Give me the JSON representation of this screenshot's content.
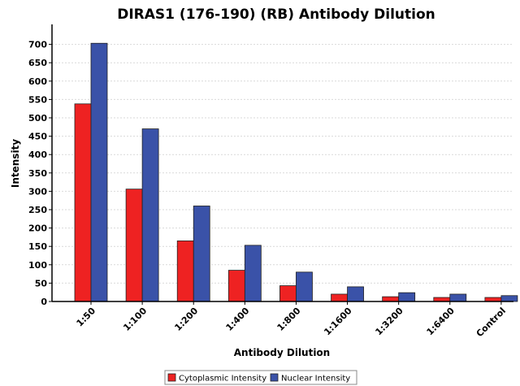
{
  "colors": {
    "cytoplasmic": "#ee2222",
    "nuclear": "#3a52a8",
    "background": "#ffffff"
  },
  "chart_data": {
    "type": "bar",
    "title": "DIRAS1 (176-190) (RB) Antibody Dilution",
    "xlabel": "Antibody Dilution",
    "ylabel": "Intensity",
    "ylim": [
      0,
      750
    ],
    "yticks": [
      0,
      50,
      100,
      150,
      200,
      250,
      300,
      350,
      400,
      450,
      500,
      550,
      600,
      650,
      700
    ],
    "grid": true,
    "legend_position": "bottom",
    "categories": [
      "1:50",
      "1:100",
      "1:200",
      "1:400",
      "1:800",
      "1:1600",
      "1:3200",
      "1:6400",
      "Control"
    ],
    "series": [
      {
        "name": "Cytoplasmic Intensity",
        "color_key": "cytoplasmic",
        "values": [
          538,
          306,
          165,
          85,
          43,
          20,
          13,
          11,
          11
        ]
      },
      {
        "name": "Nuclear Intensity",
        "color_key": "nuclear",
        "values": [
          703,
          470,
          260,
          153,
          80,
          40,
          24,
          20,
          16
        ]
      }
    ]
  }
}
